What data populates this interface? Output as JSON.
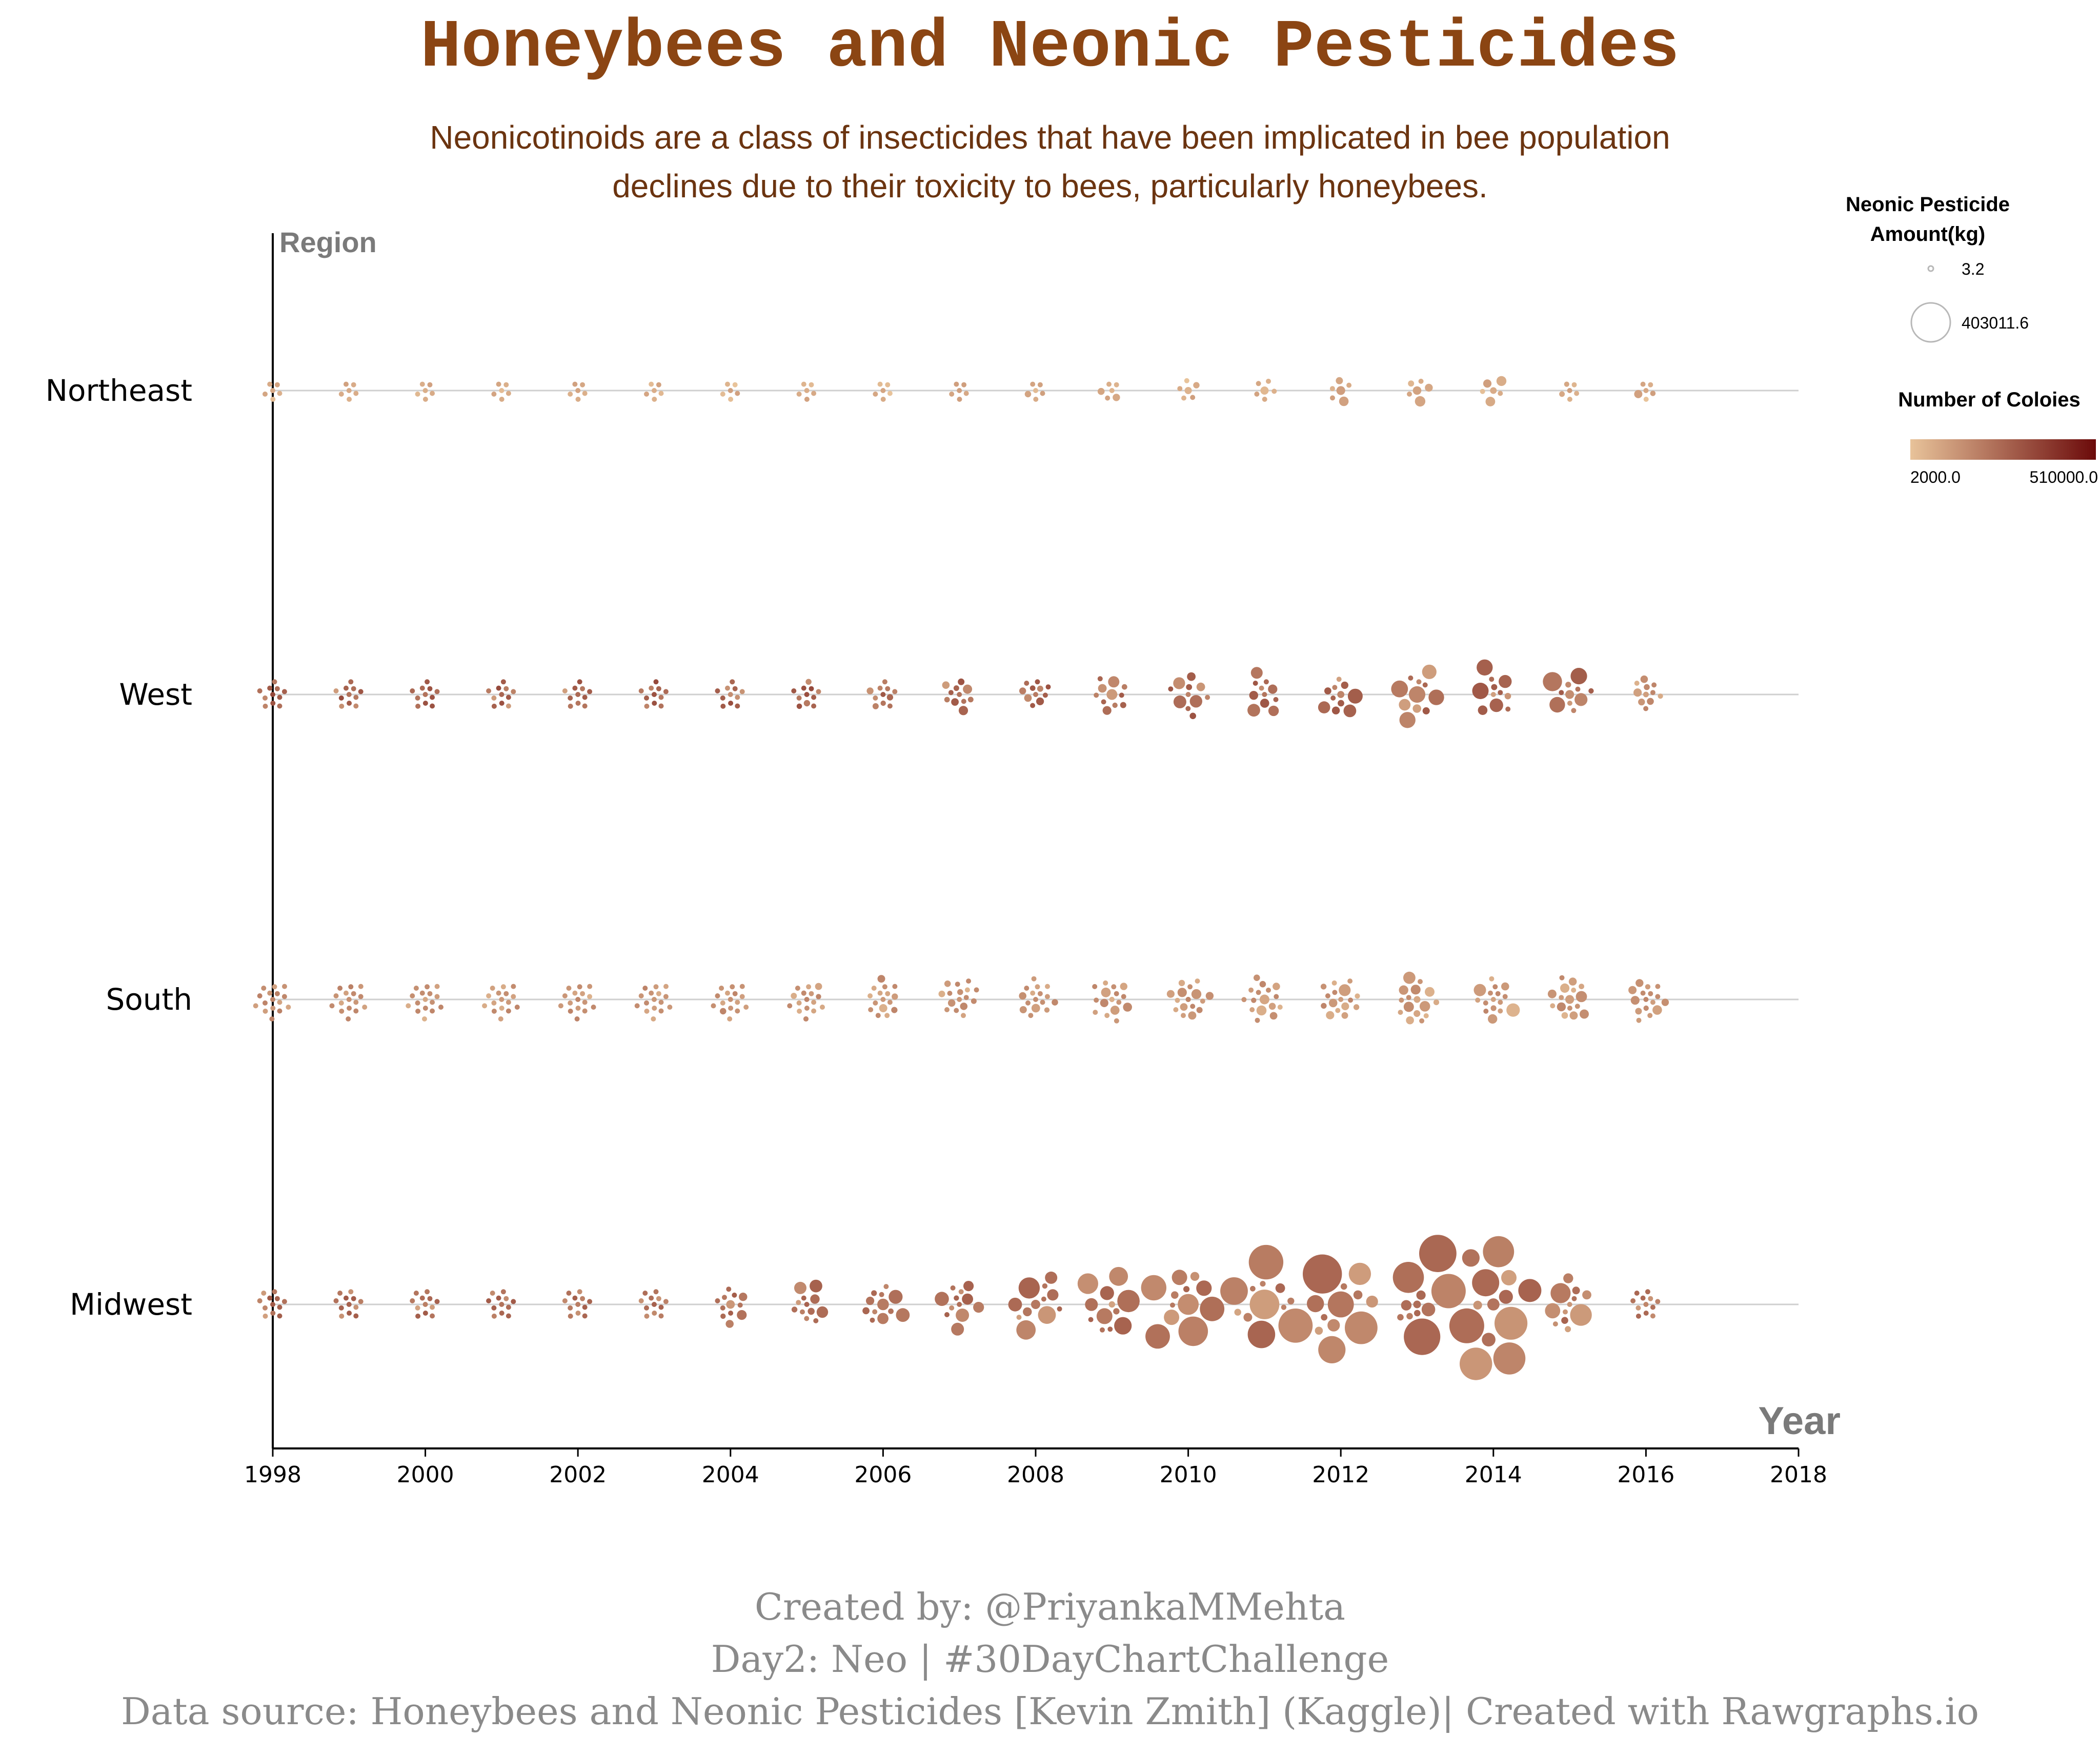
{
  "chart_data": {
    "type": "scatter",
    "title": "Honeybees and Neonic Pesticides",
    "subtitle_lines": [
      "Neonicotinoids are a class of insecticides that have been implicated in bee population",
      "declines due to their toxicity to bees, particularly honeybees."
    ],
    "xlabel": "Year",
    "ylabel": "Region",
    "xlim": [
      1998,
      2018
    ],
    "x_ticks": [
      "1998",
      "2000",
      "2002",
      "2004",
      "2006",
      "2008",
      "2010",
      "2012",
      "2014",
      "2016",
      "2018"
    ],
    "categories": [
      "Northeast",
      "West",
      "South",
      "Midwest"
    ],
    "years": [
      1998,
      1999,
      2000,
      2001,
      2002,
      2003,
      2004,
      2005,
      2006,
      2007,
      2008,
      2009,
      2010,
      2011,
      2012,
      2013,
      2014,
      2015,
      2016
    ],
    "size_legend": {
      "title": "Neonic Pesticide Amount(kg)",
      "min_label": "3.2",
      "max_label": "403011.6",
      "min": 3.2,
      "max": 403011.6
    },
    "color_legend": {
      "title": "Number of Coloies",
      "min_label": "2000.0",
      "max_label": "510000.0",
      "min": 2000,
      "max": 510000,
      "colors": [
        "#e8c39a",
        "#6b0a0a"
      ]
    },
    "series": [
      {
        "name": "Northeast",
        "states_per_year": 6,
        "pesticide_by_year": [
          200,
          300,
          400,
          500,
          600,
          800,
          900,
          1500,
          2000,
          3000,
          5000,
          7000,
          9000,
          10000,
          12000,
          14000,
          15000,
          9000,
          8000
        ],
        "colonies_by_year": [
          8000,
          8000,
          8000,
          8000,
          8000,
          8000,
          9000,
          9000,
          9000,
          9000,
          9000,
          9000,
          9000,
          9000,
          9000,
          9000,
          9000,
          9000,
          9000
        ]
      },
      {
        "name": "West",
        "states_per_year": 11,
        "pesticide_by_year": [
          2000,
          2500,
          2800,
          3000,
          3200,
          3500,
          4000,
          5000,
          6000,
          12000,
          15000,
          16000,
          20000,
          25000,
          30000,
          35000,
          38000,
          45000,
          10000
        ],
        "colonies_by_year": [
          120000,
          120000,
          115000,
          110000,
          105000,
          110000,
          105000,
          110000,
          100000,
          95000,
          100000,
          95000,
          100000,
          90000,
          85000,
          85000,
          85000,
          80000,
          30000
        ]
      },
      {
        "name": "South",
        "states_per_year": 16,
        "pesticide_by_year": [
          600,
          800,
          1000,
          1500,
          2000,
          3000,
          5000,
          7000,
          8000,
          9000,
          10000,
          11000,
          12000,
          14000,
          17000,
          20000,
          22000,
          15000,
          12000
        ],
        "colonies_by_year": [
          30000,
          30000,
          28000,
          28000,
          27000,
          27000,
          27000,
          26000,
          26000,
          26000,
          26000,
          26000,
          26000,
          25000,
          25000,
          25000,
          25000,
          25000,
          25000
        ]
      },
      {
        "name": "Midwest",
        "states_per_year": 12,
        "pesticide_by_year": [
          500,
          700,
          800,
          1000,
          1200,
          1500,
          12000,
          20000,
          25000,
          30000,
          60000,
          80000,
          110000,
          150000,
          200000,
          220000,
          240000,
          60000,
          3000
        ],
        "colonies_by_year": [
          80000,
          80000,
          78000,
          78000,
          75000,
          75000,
          75000,
          70000,
          70000,
          70000,
          70000,
          70000,
          70000,
          70000,
          65000,
          65000,
          65000,
          65000,
          65000
        ]
      }
    ]
  },
  "legend": {
    "size_title_line1": "Neonic Pesticide",
    "size_title_line2": "Amount(kg)",
    "color_title": "Number of Coloies"
  },
  "footer": {
    "line1": "Created by: @PriyankaMMehta",
    "line2": "Day2: Neo | #30DayChartChallenge",
    "line3": "Data source: Honeybees and Neonic Pesticides [Kevin Zmith] (Kaggle)| Created with Rawgraphs.io"
  }
}
